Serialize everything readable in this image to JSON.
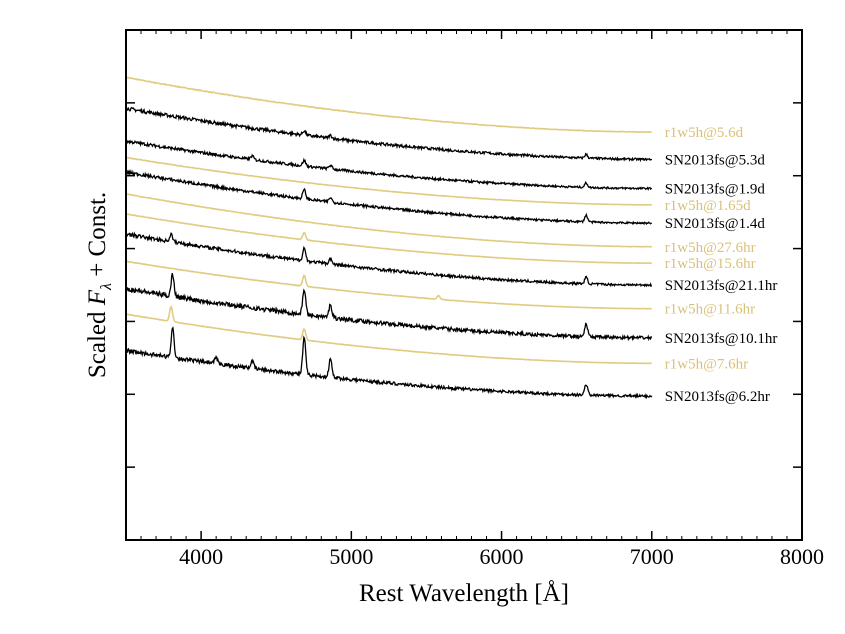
{
  "chart_data": {
    "type": "line",
    "title": "",
    "xlabel": "Rest Wavelength [Å]",
    "ylabel_prefix": "Scaled ",
    "ylabel_symbol": "F",
    "ylabel_subscript": "λ",
    "ylabel_suffix": " + Const.",
    "xlim": [
      3500,
      8000
    ],
    "ylim": [
      0,
      14
    ],
    "x_ticks": [
      4000,
      5000,
      6000,
      7000,
      8000
    ],
    "grid": false,
    "legend": "right-of-series-labels",
    "colors": {
      "observed": "#000000",
      "model": "#e0cc80"
    },
    "series": [
      {
        "name": "r1w5h@5.6d",
        "kind": "model",
        "wl_range": [
          3500,
          7000
        ],
        "baseline": 12.7,
        "tail": 11.2,
        "noise": 0.015,
        "lines": []
      },
      {
        "name": "SN2013fs@5.3d",
        "kind": "observed",
        "wl_range": [
          3500,
          7000
        ],
        "baseline": 11.85,
        "tail": 10.45,
        "noise": 0.07,
        "lines": [
          {
            "wl": 4686,
            "amp": 0.12
          },
          {
            "wl": 4861,
            "amp": 0.08
          },
          {
            "wl": 6563,
            "amp": 0.1
          }
        ]
      },
      {
        "name": "SN2013fs@1.9d",
        "kind": "observed",
        "wl_range": [
          3500,
          7000
        ],
        "baseline": 10.95,
        "tail": 9.65,
        "noise": 0.06,
        "lines": [
          {
            "wl": 4340,
            "amp": 0.1
          },
          {
            "wl": 4686,
            "amp": 0.15
          },
          {
            "wl": 4861,
            "amp": 0.1
          },
          {
            "wl": 6563,
            "amp": 0.12
          }
        ]
      },
      {
        "name": "r1w5h@1.65d",
        "kind": "model",
        "wl_range": [
          3500,
          7000
        ],
        "baseline": 10.5,
        "tail": 9.2,
        "noise": 0.01,
        "lines": []
      },
      {
        "name": "SN2013fs@1.4d",
        "kind": "observed",
        "wl_range": [
          3500,
          7000
        ],
        "baseline": 10.1,
        "tail": 8.7,
        "noise": 0.06,
        "lines": [
          {
            "wl": 4686,
            "amp": 0.25
          },
          {
            "wl": 4861,
            "amp": 0.12
          },
          {
            "wl": 6563,
            "amp": 0.18
          }
        ]
      },
      {
        "name": "r1w5h@27.6hr",
        "kind": "model",
        "wl_range": [
          3500,
          7000
        ],
        "baseline": 9.5,
        "tail": 8.05,
        "noise": 0.01,
        "lines": []
      },
      {
        "name": "r1w5h@15.6hr",
        "kind": "model",
        "wl_range": [
          3500,
          7000
        ],
        "baseline": 8.95,
        "tail": 7.6,
        "noise": 0.01,
        "lines": [
          {
            "wl": 4686,
            "amp": 0.2
          }
        ]
      },
      {
        "name": "SN2013fs@21.1hr",
        "kind": "observed",
        "wl_range": [
          3500,
          7000
        ],
        "baseline": 8.4,
        "tail": 7.0,
        "noise": 0.07,
        "lines": [
          {
            "wl": 3800,
            "amp": 0.2
          },
          {
            "wl": 4686,
            "amp": 0.35
          },
          {
            "wl": 4861,
            "amp": 0.15
          },
          {
            "wl": 6563,
            "amp": 0.18
          }
        ]
      },
      {
        "name": "r1w5h@11.6hr",
        "kind": "model",
        "wl_range": [
          3500,
          7000
        ],
        "baseline": 7.65,
        "tail": 6.35,
        "noise": 0.01,
        "lines": [
          {
            "wl": 4686,
            "amp": 0.3
          },
          {
            "wl": 5580,
            "amp": 0.1
          }
        ]
      },
      {
        "name": "SN2013fs@10.1hr",
        "kind": "observed",
        "wl_range": [
          3500,
          7000
        ],
        "baseline": 6.9,
        "tail": 5.55,
        "noise": 0.1,
        "lines": [
          {
            "wl": 3810,
            "amp": 0.6
          },
          {
            "wl": 4686,
            "amp": 0.7
          },
          {
            "wl": 4861,
            "amp": 0.35
          },
          {
            "wl": 6563,
            "amp": 0.35
          }
        ]
      },
      {
        "name": "r1w5h@7.6hr",
        "kind": "model",
        "wl_range": [
          3500,
          7000
        ],
        "baseline": 6.2,
        "tail": 4.85,
        "noise": 0.01,
        "lines": [
          {
            "wl": 3800,
            "amp": 0.4
          },
          {
            "wl": 4686,
            "amp": 0.3
          }
        ]
      },
      {
        "name": "SN2013fs@6.2hr",
        "kind": "observed",
        "wl_range": [
          3500,
          7000
        ],
        "baseline": 5.2,
        "tail": 3.95,
        "noise": 0.08,
        "lines": [
          {
            "wl": 3810,
            "amp": 0.8
          },
          {
            "wl": 4100,
            "amp": 0.15
          },
          {
            "wl": 4340,
            "amp": 0.2
          },
          {
            "wl": 4686,
            "amp": 1.0
          },
          {
            "wl": 4861,
            "amp": 0.5
          },
          {
            "wl": 6563,
            "amp": 0.3
          }
        ]
      }
    ]
  }
}
